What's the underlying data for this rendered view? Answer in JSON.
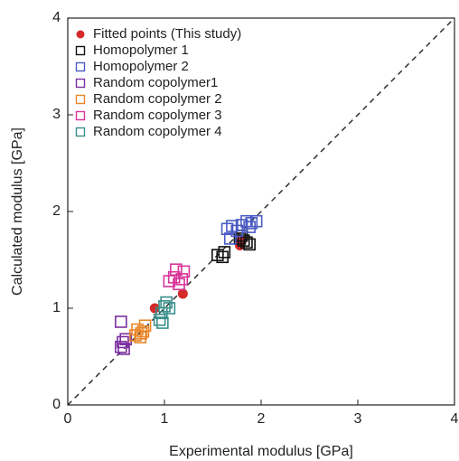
{
  "chart_data": {
    "type": "scatter",
    "xlabel": "Experimental modulus [GPa]",
    "ylabel": "Calculated modulus [GPa]",
    "xlim": [
      0,
      4
    ],
    "ylim": [
      0,
      4
    ],
    "xticks": [
      0,
      1,
      2,
      3,
      4
    ],
    "yticks": [
      0,
      1,
      2,
      3,
      4
    ],
    "diagonal": true,
    "legend": "upper left",
    "series": [
      {
        "name": "Fitted points (This study)",
        "color": "#d42a2a",
        "marker": "circle",
        "x": [
          0.9,
          1.19,
          1.78,
          1.8
        ],
        "values": [
          1.0,
          1.15,
          1.65,
          1.7
        ]
      },
      {
        "name": "Homopolymer 1",
        "color": "#111111",
        "marker": "square",
        "x": [
          1.55,
          1.6,
          1.62,
          1.78,
          1.82,
          1.85,
          1.88,
          1.8
        ],
        "values": [
          1.55,
          1.53,
          1.58,
          1.72,
          1.7,
          1.68,
          1.66,
          1.75
        ]
      },
      {
        "name": "Homopolymer 2",
        "color": "#4a5bc4",
        "marker": "square",
        "x": [
          1.65,
          1.7,
          1.75,
          1.85,
          1.9,
          1.95,
          1.8,
          1.88,
          1.68
        ],
        "values": [
          1.82,
          1.85,
          1.8,
          1.9,
          1.88,
          1.9,
          1.86,
          1.84,
          1.72
        ]
      },
      {
        "name": "Random copolymer1",
        "color": "#7b2fa0",
        "marker": "square",
        "x": [
          0.55,
          0.55,
          0.57,
          0.58,
          0.6
        ],
        "values": [
          0.86,
          0.6,
          0.65,
          0.58,
          0.68
        ]
      },
      {
        "name": "Random copolymer 2",
        "color": "#e8862a",
        "marker": "square",
        "x": [
          0.7,
          0.72,
          0.75,
          0.78,
          0.8,
          0.76
        ],
        "values": [
          0.72,
          0.78,
          0.7,
          0.76,
          0.82,
          0.74
        ]
      },
      {
        "name": "Random copolymer 3",
        "color": "#d9349a",
        "marker": "square",
        "x": [
          1.05,
          1.1,
          1.15,
          1.2,
          1.12,
          1.18
        ],
        "values": [
          1.28,
          1.32,
          1.25,
          1.38,
          1.4,
          1.3
        ]
      },
      {
        "name": "Random copolymer 4",
        "color": "#3a8f8c",
        "marker": "square",
        "x": [
          0.95,
          0.98,
          1.0,
          1.02,
          1.05,
          0.97
        ],
        "values": [
          0.88,
          0.85,
          1.02,
          1.06,
          1.0,
          0.95
        ]
      }
    ]
  }
}
